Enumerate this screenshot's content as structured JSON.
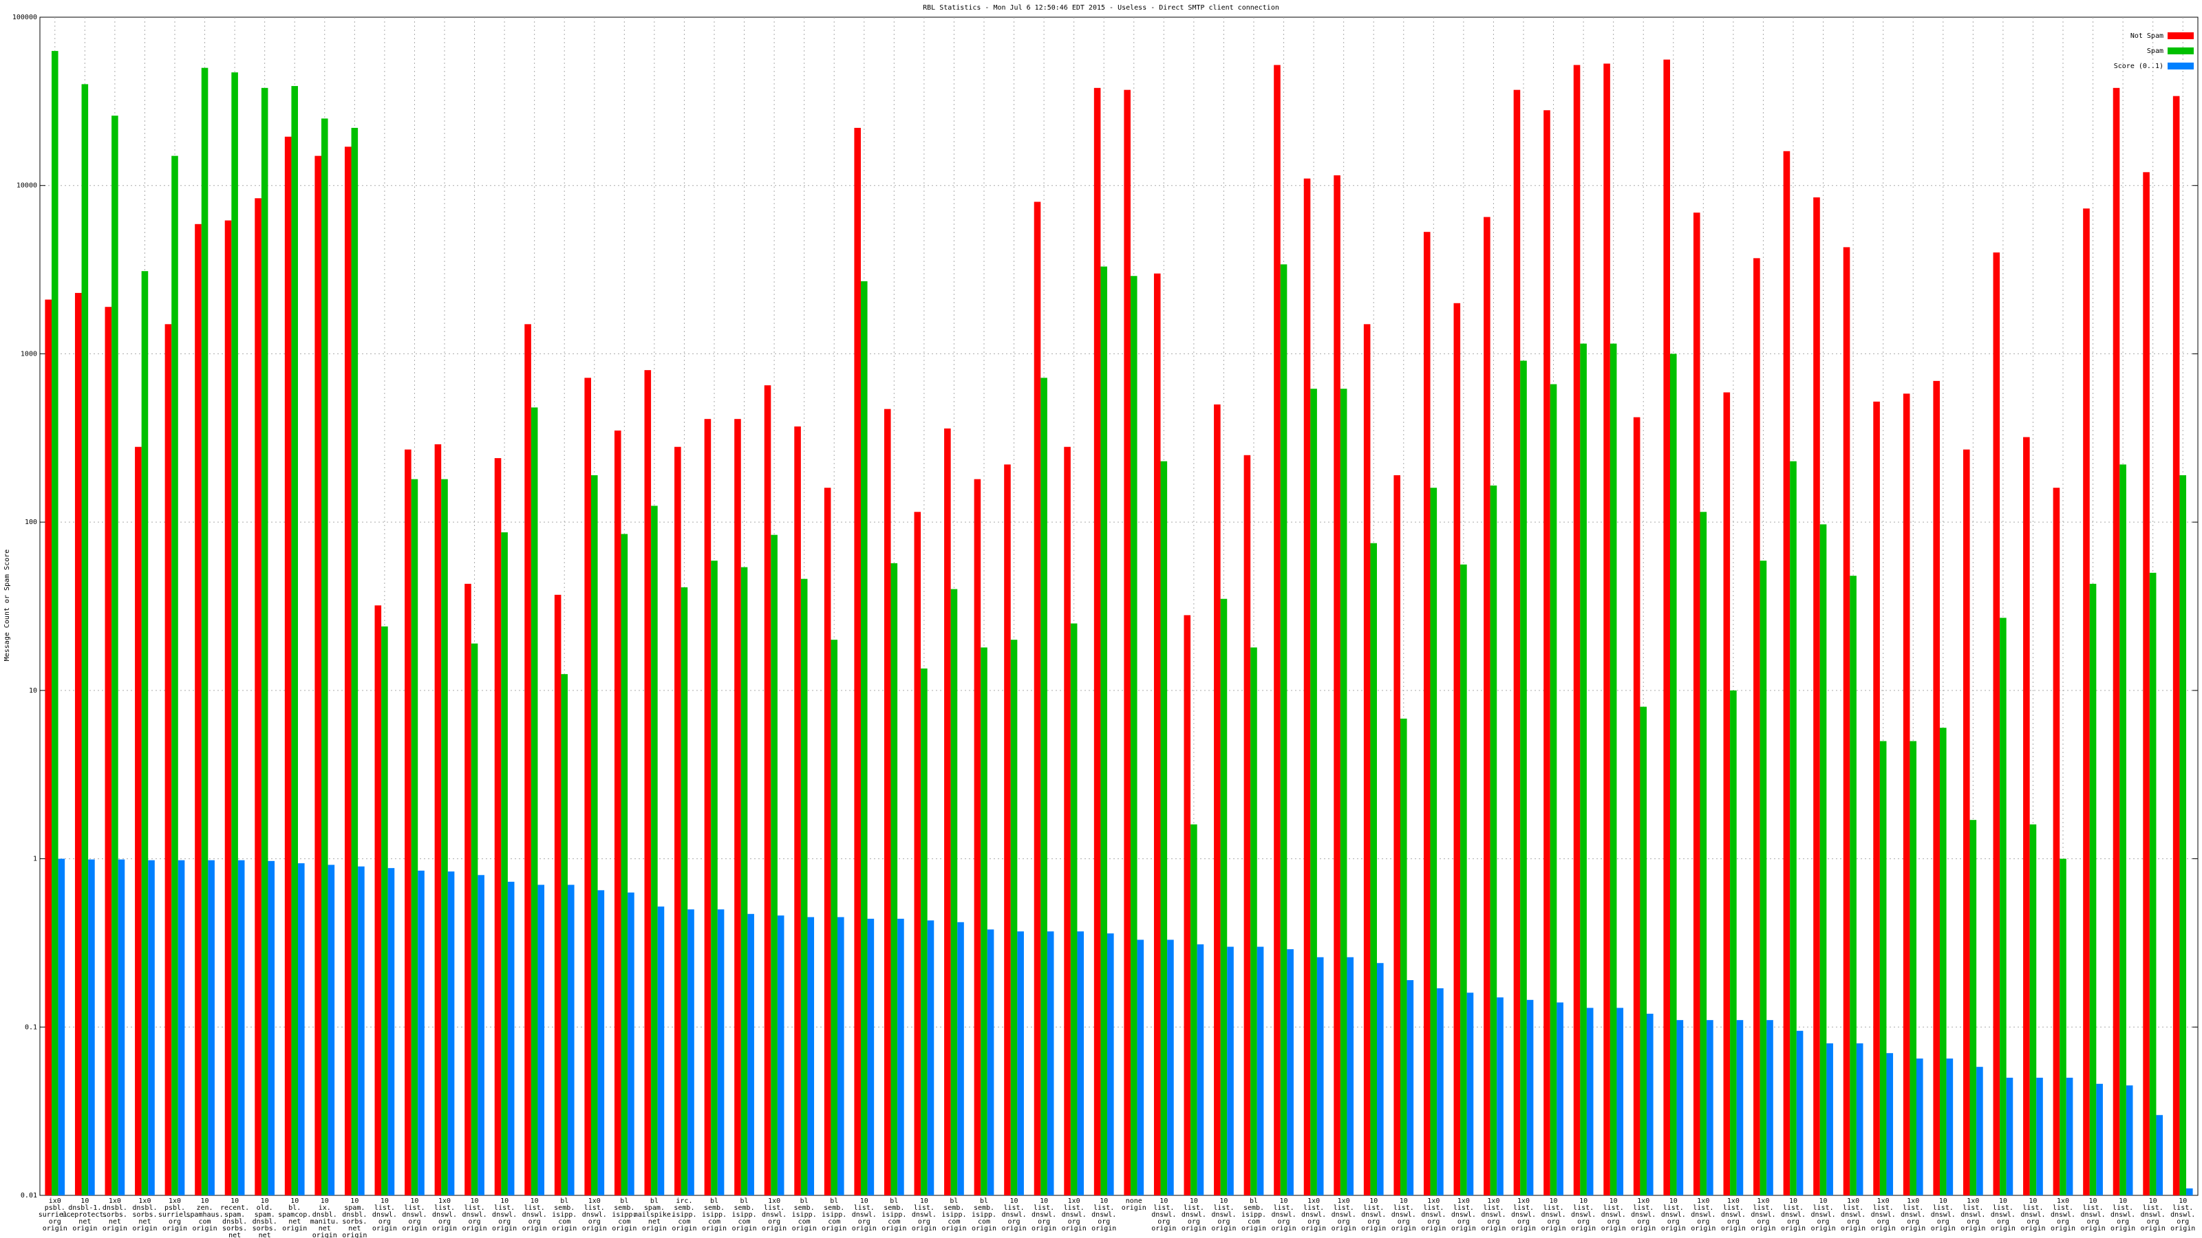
{
  "chart_data": {
    "type": "bar",
    "title": "RBL Statistics - Mon Jul  6 12:50:46 EDT 2015 - Useless - Direct SMTP client connection",
    "y_label": "Message Count or Spam Score",
    "log_scale": true,
    "grid": true,
    "legend": "top-right",
    "ylim": [
      0.01,
      100000
    ],
    "yticks": [
      0.01,
      0.1,
      1,
      10,
      100,
      1000,
      10000,
      100000
    ],
    "categories": [
      "ix0\npsbl.\nsurriel.\norg\norigin",
      "10\ndnsbl-1.\nuceprotect.\nnet\norigin",
      "1x0\ndnsbl.\nsorbs.\nnet\norigin",
      "1x0\ndnsbl.\nsorbs.\nnet\norigin",
      "1x0\npsbl.\nsurriel.\norg\norigin",
      "10\nzen.\nspamhaus.\ncom\norigin",
      "10\nrecent.\nspam.\ndnsbl.\nsorbs.\nnet\norigin",
      "10\nold.\nspam.\ndnsbl.\nsorbs.\nnet\norigin",
      "10\nbl.\nspamcop.\nnet\norigin",
      "10\nix.\ndnsbl.\nmanitu.\nnet\norigin",
      "10\nspam.\ndnsbl.\nsorbs.\nnet\norigin",
      "10\nlist.\ndnswl.\norg\norigin",
      "10\nlist.\ndnswl.\norg\norigin",
      "1x0\nlist.\ndnswl.\norg\norigin",
      "10\nlist.\ndnswl.\norg\norigin",
      "10\nlist.\ndnswl.\norg\norigin",
      "10\nlist.\ndnswl.\norg\norigin",
      "bl\nsemb.\nisipp.\ncom\norigin",
      "1x0\nlist.\ndnswl.\norg\norigin",
      "bl\nsemb.\nisipp.\ncom\norigin",
      "bl\nspam.\nmailspike.\nnet\norigin",
      "irc.\nsemb.\nisipp.\ncom\norigin",
      "bl\nsemb.\nisipp.\ncom\norigin",
      "bl\nsemb.\nisipp.\ncom\norigin",
      "1x0\nlist.\ndnswl.\norg\norigin",
      "bl\nsemb.\nisipp.\ncom\norigin",
      "bl\nsemb.\nisipp.\ncom\norigin",
      "10\nlist.\ndnswl.\norg\norigin",
      "bl\nsemb.\nisipp.\ncom\norigin",
      "10\nlist.\ndnswl.\norg\norigin",
      "bl\nsemb.\nisipp.\ncom\norigin",
      "bl\nsemb.\nisipp.\ncom\norigin",
      "10\nlist.\ndnswl.\norg\norigin",
      "10\nlist.\ndnswl.\norg\norigin",
      "1x0\nlist.\ndnswl.\norg\norigin",
      "10\nlist.\ndnswl.\norg\norigin",
      "none\norigin",
      "10\nlist.\ndnswl.\norg\norigin",
      "10\nlist.\ndnswl.\norg\norigin",
      "10\nlist.\ndnswl.\norg\norigin",
      "bl\nsemb.\nisipp.\ncom\norigin",
      "10\nlist.\ndnswl.\norg\norigin",
      "1x0\nlist.\ndnswl.\norg\norigin",
      "1x0\nlist.\ndnswl.\norg\norigin",
      "10\nlist.\ndnswl.\norg\norigin",
      "10\nlist.\ndnswl.\norg\norigin",
      "1x0\nlist.\ndnswl.\norg\norigin",
      "1x0\nlist.\ndnswl.\norg\norigin",
      "1x0\nlist.\ndnswl.\norg\norigin",
      "1x0\nlist.\ndnswl.\norg\norigin",
      "10\nlist.\ndnswl.\norg\norigin",
      "10\nlist.\ndnswl.\norg\norigin",
      "10\nlist.\ndnswl.\norg\norigin",
      "1x0\nlist.\ndnswl.\norg\norigin",
      "10\nlist.\ndnswl.\norg\norigin",
      "1x0\nlist.\ndnswl.\norg\norigin",
      "1x0\nlist.\ndnswl.\norg\norigin",
      "1x0\nlist.\ndnswl.\norg\norigin",
      "10\nlist.\ndnswl.\norg\norigin",
      "10\nlist.\ndnswl.\norg\norigin",
      "1x0\nlist.\ndnswl.\norg\norigin",
      "1x0\nlist.\ndnswl.\norg\norigin",
      "1x0\nlist.\ndnswl.\norg\norigin",
      "10\nlist.\ndnswl.\norg\norigin",
      "1x0\nlist.\ndnswl.\norg\norigin",
      "10\nlist.\ndnswl.\norg\norigin",
      "10\nlist.\ndnswl.\norg\norigin",
      "1x0\nlist.\ndnswl.\norg\norigin",
      "10\nlist.\ndnswl.\norg\norigin",
      "10\nlist.\ndnswl.\norg\norigin",
      "10\nlist.\ndnswl.\norg\norigin",
      "10\nlist.\ndnswl.\norg\norigin"
    ],
    "series": [
      {
        "name": "Not Spam",
        "color": "#ff0000",
        "values": [
          2100,
          2300,
          1900,
          280,
          1500,
          5900,
          6200,
          8400,
          19500,
          15000,
          17000,
          32,
          270,
          290,
          43,
          240,
          1500,
          37,
          720,
          350,
          800,
          280,
          410,
          410,
          650,
          370,
          160,
          22000,
          470,
          115,
          360,
          180,
          220,
          8000,
          280,
          38000,
          37000,
          3000,
          28,
          500,
          250,
          52000,
          11000,
          11500,
          1500,
          190,
          5300,
          2000,
          6500,
          37000,
          28000,
          52000,
          53000,
          420,
          56000,
          6900,
          590,
          3700,
          16000,
          8500,
          4300,
          520,
          580,
          690,
          270,
          4000,
          320,
          160,
          7300,
          38000,
          12000,
          34000
        ]
      },
      {
        "name": "Spam",
        "color": "#00c000",
        "values": [
          63000,
          40000,
          26000,
          3100,
          15000,
          50000,
          47000,
          38000,
          39000,
          25000,
          22000,
          24,
          180,
          180,
          19,
          87,
          480,
          12.5,
          190,
          85,
          125,
          41,
          59,
          54,
          84,
          46,
          20,
          2700,
          57,
          13.5,
          40,
          18,
          20,
          720,
          25,
          3300,
          2900,
          230,
          1.6,
          35,
          18,
          3400,
          620,
          620,
          75,
          6.8,
          160,
          56,
          165,
          910,
          660,
          1150,
          1150,
          8,
          1000,
          115,
          10,
          59,
          230,
          97,
          48,
          5,
          5,
          6,
          1.7,
          27,
          1.6,
          1,
          43,
          220,
          50,
          190
        ]
      },
      {
        "name": "Score (0..1)",
        "color": "#0080ff",
        "values": [
          1,
          0.99,
          0.99,
          0.98,
          0.98,
          0.98,
          0.98,
          0.97,
          0.94,
          0.92,
          0.9,
          0.88,
          0.85,
          0.84,
          0.8,
          0.73,
          0.7,
          0.7,
          0.65,
          0.63,
          0.52,
          0.5,
          0.5,
          0.47,
          0.46,
          0.45,
          0.45,
          0.44,
          0.44,
          0.43,
          0.42,
          0.38,
          0.37,
          0.37,
          0.37,
          0.36,
          0.33,
          0.33,
          0.31,
          0.3,
          0.3,
          0.29,
          0.26,
          0.26,
          0.24,
          0.19,
          0.17,
          0.16,
          0.15,
          0.145,
          0.14,
          0.13,
          0.13,
          0.12,
          0.11,
          0.11,
          0.11,
          0.11,
          0.095,
          0.08,
          0.08,
          0.07,
          0.065,
          0.065,
          0.058,
          0.05,
          0.05,
          0.05,
          0.046,
          0.045,
          0.03,
          0.011
        ]
      }
    ]
  }
}
